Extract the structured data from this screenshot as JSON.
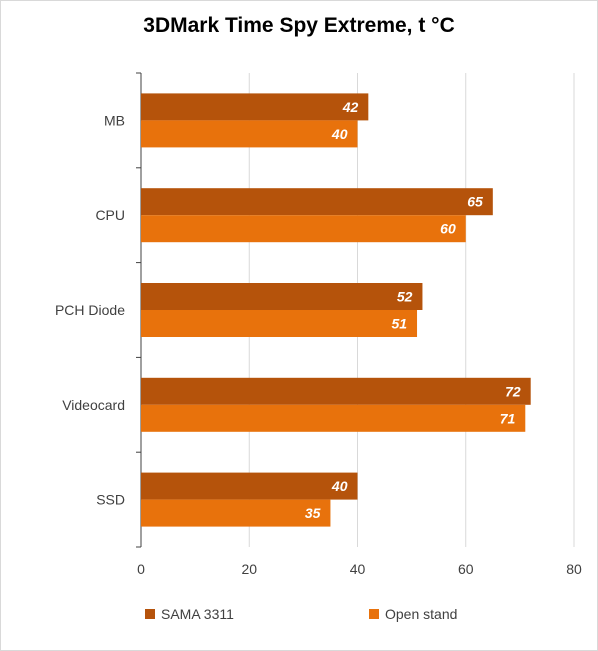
{
  "chart_data": {
    "type": "bar",
    "orientation": "horizontal",
    "title": "3DMark Time Spy Extreme, t °C",
    "categories": [
      "MB",
      "CPU",
      "PCH Diode",
      "Videocard",
      "SSD"
    ],
    "series": [
      {
        "name": "SAMA 3311",
        "values": [
          42,
          65,
          52,
          72,
          40
        ],
        "color": "#b5530b"
      },
      {
        "name": "Open stand",
        "values": [
          40,
          60,
          51,
          71,
          35
        ],
        "color": "#e8720c"
      }
    ],
    "xlim": [
      0,
      80
    ],
    "x_ticks": [
      "0",
      "20",
      "40",
      "60",
      "80"
    ],
    "grid": true,
    "legend_position": "bottom",
    "data_labels": true
  }
}
